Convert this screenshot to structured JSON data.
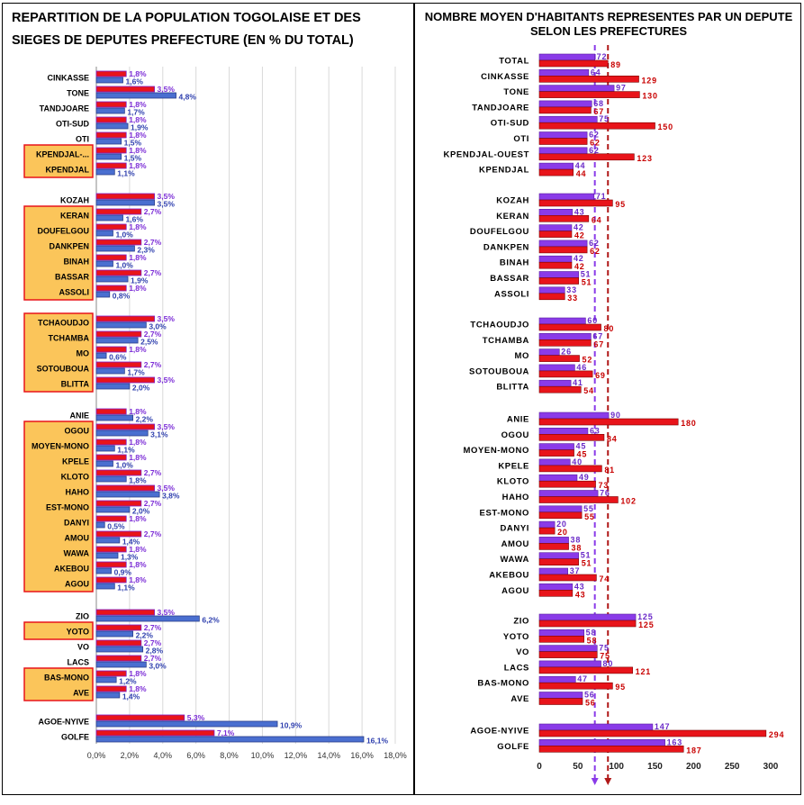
{
  "left_title": "REPARTITION DE LA POPULATION TOGOLAISE ET DES SIEGES DE DEPUTES PREFECTURE (EN % DU TOTAL)",
  "right_title": "NOMBRE MOYEN D'HABITANTS REPRESENTES PAR UN DEPUTE SELON LES PREFECTURES",
  "footer_text": "",
  "colors": {
    "seats_bar": "#e8141a",
    "seats_label": "#7b2cd6",
    "population_bar": "#4a6fd0",
    "population_label": "#2e3fae",
    "highlight_fill": "#fbc55a",
    "highlight_border": "#e8141a",
    "right_purple": "#8a3be8",
    "right_red": "#e8141a",
    "right_purple_label": "#6a2ac8",
    "right_red_label": "#c80000"
  },
  "chart_data": [
    {
      "type": "bar",
      "orientation": "horizontal",
      "title": "REPARTITION DE LA POPULATION TOGOLAISE ET DES SIEGES DE DEPUTES PREFECTURE (EN % DU TOTAL)",
      "xlim": [
        0,
        18
      ],
      "xticks": [
        "0,0%",
        "2,0%",
        "4,0%",
        "6,0%",
        "8,0%",
        "10,0%",
        "12,0%",
        "14,0%",
        "16,0%",
        "18,0%"
      ],
      "grid": true,
      "groups": [
        [
          {
            "label": "CINKASSE",
            "seats": 1.8,
            "population": 1.6,
            "seats_label": "1,8%",
            "pop_label": "1,6%",
            "highlight": false
          },
          {
            "label": "TONE",
            "seats": 3.5,
            "population": 4.8,
            "seats_label": "3,5%",
            "pop_label": "4,8%",
            "highlight": false
          },
          {
            "label": "TANDJOARE",
            "seats": 1.8,
            "population": 1.7,
            "seats_label": "1,8%",
            "pop_label": "1,7%",
            "highlight": false
          },
          {
            "label": "OTI-SUD",
            "seats": 1.8,
            "population": 1.9,
            "seats_label": "1,8%",
            "pop_label": "1,9%",
            "highlight": false
          },
          {
            "label": "OTI",
            "seats": 1.8,
            "population": 1.5,
            "seats_label": "1,8%",
            "pop_label": "1,5%",
            "highlight": false
          },
          {
            "label": "KPENDJAL-...",
            "seats": 1.8,
            "population": 1.5,
            "seats_label": "1,8%",
            "pop_label": "1,5%",
            "highlight": true
          },
          {
            "label": "KPENDJAL",
            "seats": 1.8,
            "population": 1.1,
            "seats_label": "1,8%",
            "pop_label": "1,1%",
            "highlight": true
          }
        ],
        [
          {
            "label": "KOZAH",
            "seats": 3.5,
            "population": 3.5,
            "seats_label": "3,5%",
            "pop_label": "3,5%",
            "highlight": false
          },
          {
            "label": "KERAN",
            "seats": 2.7,
            "population": 1.6,
            "seats_label": "2,7%",
            "pop_label": "1,6%",
            "highlight": true
          },
          {
            "label": "DOUFELGOU",
            "seats": 1.8,
            "population": 1.0,
            "seats_label": "1,8%",
            "pop_label": "1,0%",
            "highlight": true
          },
          {
            "label": "DANKPEN",
            "seats": 2.7,
            "population": 2.3,
            "seats_label": "2,7%",
            "pop_label": "2,3%",
            "highlight": true
          },
          {
            "label": "BINAH",
            "seats": 1.8,
            "population": 1.0,
            "seats_label": "1,8%",
            "pop_label": "1,0%",
            "highlight": true
          },
          {
            "label": "BASSAR",
            "seats": 2.7,
            "population": 1.9,
            "seats_label": "2,7%",
            "pop_label": "1,9%",
            "highlight": true
          },
          {
            "label": "ASSOLI",
            "seats": 1.8,
            "population": 0.8,
            "seats_label": "1,8%",
            "pop_label": "0,8%",
            "highlight": true
          }
        ],
        [
          {
            "label": "TCHAOUDJO",
            "seats": 3.5,
            "population": 3.0,
            "seats_label": "3,5%",
            "pop_label": "3,0%",
            "highlight": true
          },
          {
            "label": "TCHAMBA",
            "seats": 2.7,
            "population": 2.5,
            "seats_label": "2,7%",
            "pop_label": "2,5%",
            "highlight": true
          },
          {
            "label": "MO",
            "seats": 1.8,
            "population": 0.6,
            "seats_label": "1,8%",
            "pop_label": "0,6%",
            "highlight": true
          },
          {
            "label": "SOTOUBOUA",
            "seats": 2.7,
            "population": 1.7,
            "seats_label": "2,7%",
            "pop_label": "1,7%",
            "highlight": true
          },
          {
            "label": "BLITTA",
            "seats": 3.5,
            "population": 2.0,
            "seats_label": "3,5%",
            "pop_label": "2,0%",
            "highlight": true
          }
        ],
        [
          {
            "label": "ANIE",
            "seats": 1.8,
            "population": 2.2,
            "seats_label": "1,8%",
            "pop_label": "2,2%",
            "highlight": false
          },
          {
            "label": "OGOU",
            "seats": 3.5,
            "population": 3.1,
            "seats_label": "3,5%",
            "pop_label": "3,1%",
            "highlight": true
          },
          {
            "label": "MOYEN-MONO",
            "seats": 1.8,
            "population": 1.1,
            "seats_label": "1,8%",
            "pop_label": "1,1%",
            "highlight": true
          },
          {
            "label": "KPELE",
            "seats": 1.8,
            "population": 1.0,
            "seats_label": "1,8%",
            "pop_label": "1,0%",
            "highlight": true
          },
          {
            "label": "KLOTO",
            "seats": 2.7,
            "population": 1.8,
            "seats_label": "2,7%",
            "pop_label": "1,8%",
            "highlight": true
          },
          {
            "label": "HAHO",
            "seats": 3.5,
            "population": 3.8,
            "seats_label": "3,5%",
            "pop_label": "3,8%",
            "highlight": true
          },
          {
            "label": "EST-MONO",
            "seats": 2.7,
            "population": 2.0,
            "seats_label": "2,7%",
            "pop_label": "2,0%",
            "highlight": true
          },
          {
            "label": "DANYI",
            "seats": 1.8,
            "population": 0.5,
            "seats_label": "1,8%",
            "pop_label": "0,5%",
            "highlight": true
          },
          {
            "label": "AMOU",
            "seats": 2.7,
            "population": 1.4,
            "seats_label": "2,7%",
            "pop_label": "1,4%",
            "highlight": true
          },
          {
            "label": "WAWA",
            "seats": 1.8,
            "population": 1.3,
            "seats_label": "1,8%",
            "pop_label": "1,3%",
            "highlight": true
          },
          {
            "label": "AKEBOU",
            "seats": 1.8,
            "population": 0.9,
            "seats_label": "1,8%",
            "pop_label": "0,9%",
            "highlight": true
          },
          {
            "label": "AGOU",
            "seats": 1.8,
            "population": 1.1,
            "seats_label": "1,8%",
            "pop_label": "1,1%",
            "highlight": true
          }
        ],
        [
          {
            "label": "ZIO",
            "seats": 3.5,
            "population": 6.2,
            "seats_label": "3,5%",
            "pop_label": "6,2%",
            "highlight": false
          },
          {
            "label": "YOTO",
            "seats": 2.7,
            "population": 2.2,
            "seats_label": "2,7%",
            "pop_label": "2,2%",
            "highlight": true
          },
          {
            "label": "VO",
            "seats": 2.7,
            "population": 2.8,
            "seats_label": "2,7%",
            "pop_label": "2,8%",
            "highlight": false
          },
          {
            "label": "LACS",
            "seats": 2.7,
            "population": 3.0,
            "seats_label": "2,7%",
            "pop_label": "3,0%",
            "highlight": false
          },
          {
            "label": "BAS-MONO",
            "seats": 1.8,
            "population": 1.2,
            "seats_label": "1,8%",
            "pop_label": "1,2%",
            "highlight": true
          },
          {
            "label": "AVE",
            "seats": 1.8,
            "population": 1.4,
            "seats_label": "1,8%",
            "pop_label": "1,4%",
            "highlight": true
          }
        ],
        [
          {
            "label": "AGOE-NYIVE",
            "seats": 5.3,
            "population": 10.9,
            "seats_label": "5,3%",
            "pop_label": "10,9%",
            "highlight": false
          },
          {
            "label": "GOLFE",
            "seats": 7.1,
            "population": 16.1,
            "seats_label": "7,1%",
            "pop_label": "16,1%",
            "highlight": false
          }
        ]
      ]
    },
    {
      "type": "bar",
      "orientation": "horizontal",
      "title": "NOMBRE MOYEN D'HABITANTS REPRESENTES PAR UN DEPUTE SELON LES PREFECTURES",
      "xlim": [
        0,
        300
      ],
      "xticks": [
        "0",
        "50",
        "100",
        "150",
        "200",
        "250",
        "300"
      ],
      "grid": false,
      "reference_lines": [
        72,
        89
      ],
      "groups": [
        [
          {
            "label": "TOTAL",
            "purple": 72,
            "red": 89
          },
          {
            "label": "CINKASSE",
            "purple": 64,
            "red": 129
          },
          {
            "label": "TONE",
            "purple": 97,
            "red": 130
          },
          {
            "label": "TANDJOARE",
            "purple": 68,
            "red": 67
          },
          {
            "label": "OTI-SUD",
            "purple": 75,
            "red": 150
          },
          {
            "label": "OTI",
            "purple": 62,
            "red": 62
          },
          {
            "label": "KPENDJAL-OUEST",
            "purple": 62,
            "red": 123
          },
          {
            "label": "KPENDJAL",
            "purple": 44,
            "red": 44
          }
        ],
        [
          {
            "label": "KOZAH",
            "purple": 71,
            "red": 95
          },
          {
            "label": "KERAN",
            "purple": 43,
            "red": 64
          },
          {
            "label": "DOUFELGOU",
            "purple": 42,
            "red": 42
          },
          {
            "label": "DANKPEN",
            "purple": 62,
            "red": 62
          },
          {
            "label": "BINAH",
            "purple": 42,
            "red": 42
          },
          {
            "label": "BASSAR",
            "purple": 51,
            "red": 51
          },
          {
            "label": "ASSOLI",
            "purple": 33,
            "red": 33
          }
        ],
        [
          {
            "label": "TCHAOUDJO",
            "purple": 60,
            "red": 80
          },
          {
            "label": "TCHAMBA",
            "purple": 67,
            "red": 67
          },
          {
            "label": "MO",
            "purple": 26,
            "red": 52
          },
          {
            "label": "SOTOUBOUA",
            "purple": 46,
            "red": 69
          },
          {
            "label": "BLITTA",
            "purple": 41,
            "red": 54
          }
        ],
        [
          {
            "label": "ANIE",
            "purple": 90,
            "red": 180
          },
          {
            "label": "OGOU",
            "purple": 63,
            "red": 84
          },
          {
            "label": "MOYEN-MONO",
            "purple": 45,
            "red": 45
          },
          {
            "label": "KPELE",
            "purple": 40,
            "red": 81
          },
          {
            "label": "KLOTO",
            "purple": 49,
            "red": 73
          },
          {
            "label": "HAHO",
            "purple": 76,
            "red": 102
          },
          {
            "label": "EST-MONO",
            "purple": 55,
            "red": 55
          },
          {
            "label": "DANYI",
            "purple": 20,
            "red": 20
          },
          {
            "label": "AMOU",
            "purple": 38,
            "red": 38
          },
          {
            "label": "WAWA",
            "purple": 51,
            "red": 51
          },
          {
            "label": "AKEBOU",
            "purple": 37,
            "red": 74
          },
          {
            "label": "AGOU",
            "purple": 43,
            "red": 43
          }
        ],
        [
          {
            "label": "ZIO",
            "purple": 125,
            "red": 125
          },
          {
            "label": "YOTO",
            "purple": 58,
            "red": 58
          },
          {
            "label": "VO",
            "purple": 75,
            "red": 75
          },
          {
            "label": "LACS",
            "purple": 80,
            "red": 121
          },
          {
            "label": "BAS-MONO",
            "purple": 47,
            "red": 95
          },
          {
            "label": "AVE",
            "purple": 56,
            "red": 56
          }
        ],
        [
          {
            "label": "AGOE-NYIVE",
            "purple": 147,
            "red": 294
          },
          {
            "label": "GOLFE",
            "purple": 163,
            "red": 187
          }
        ]
      ]
    }
  ]
}
